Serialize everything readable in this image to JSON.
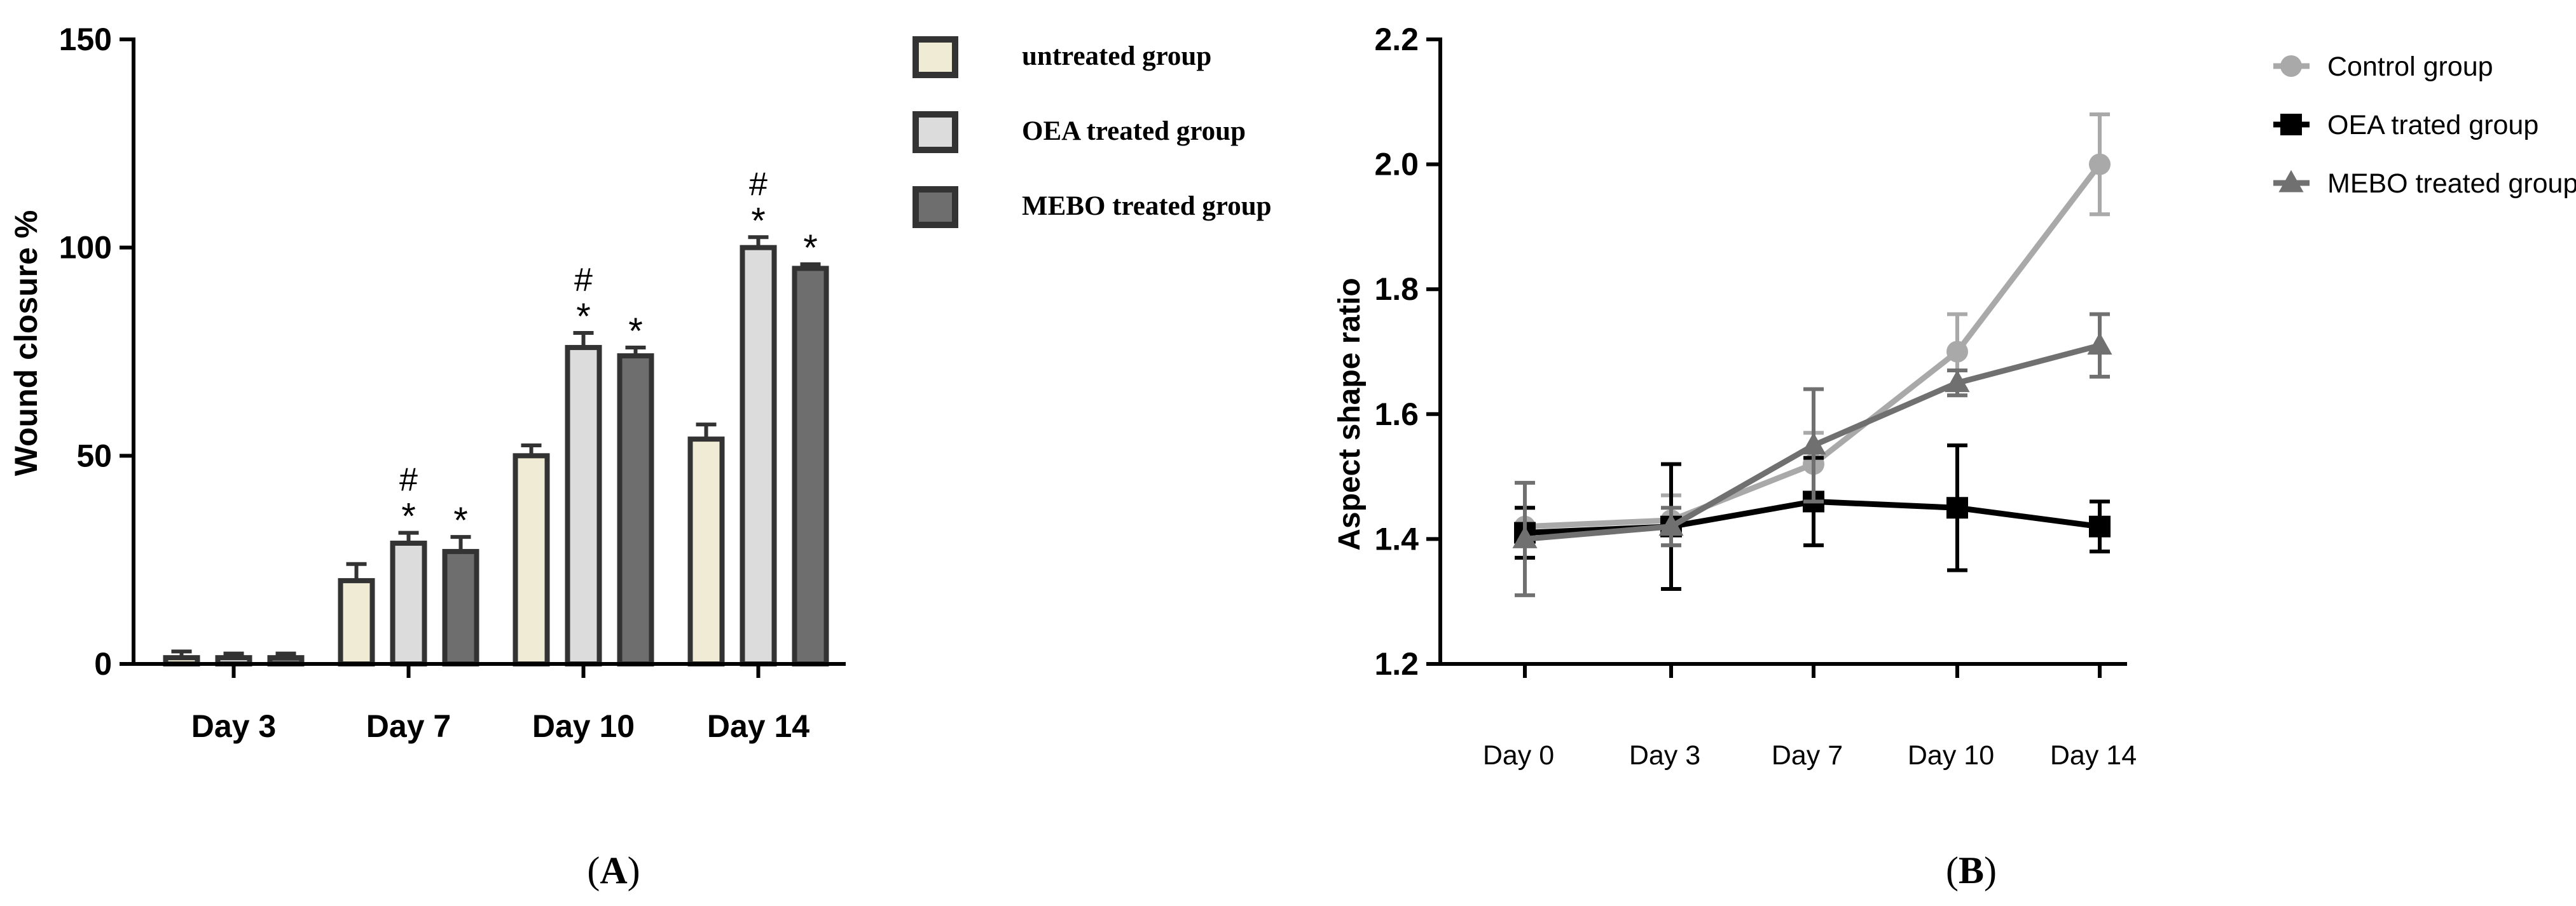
{
  "chart_data": [
    {
      "type": "bar",
      "panel_label": "(A)",
      "panel_letter": "A",
      "ylabel": "Wound closure %",
      "ylim": [
        0,
        150
      ],
      "yticks": [
        "0",
        "50",
        "100",
        "150"
      ],
      "categories": [
        "Day 3",
        "Day 7",
        "Day 10",
        "Day 14"
      ],
      "series": [
        {
          "name": "untreated group",
          "color": "#f0ebd4",
          "values": [
            1.5,
            20,
            50,
            54
          ],
          "errors": [
            1.5,
            4,
            2.5,
            3.5
          ],
          "marks": [
            "",
            "",
            "",
            ""
          ]
        },
        {
          "name": "OEA treated group",
          "color": "#dcdcdc",
          "values": [
            1.5,
            29,
            76,
            100
          ],
          "errors": [
            1,
            2.5,
            3.5,
            2.5
          ],
          "marks": [
            "",
            "#*",
            "#*",
            "#*"
          ]
        },
        {
          "name": "MEBO treated group",
          "color": "#6e6e6e",
          "values": [
            1.5,
            27,
            74,
            95
          ],
          "errors": [
            1,
            3.5,
            2,
            1
          ],
          "marks": [
            "",
            "*",
            "*",
            "*"
          ]
        }
      ]
    },
    {
      "type": "line",
      "panel_label": "(B)",
      "panel_letter": "B",
      "ylabel": "Aspect shape ratio",
      "ylim": [
        1.2,
        2.2
      ],
      "yticks": [
        "1.2",
        "1.4",
        "1.6",
        "1.8",
        "2.0",
        "2.2"
      ],
      "x": [
        "Day 0",
        "Day 3",
        "Day 7",
        "Day 10",
        "Day 14"
      ],
      "series": [
        {
          "name": "Control group",
          "color": "#a9a9a9",
          "marker": "circle",
          "values": [
            1.42,
            1.43,
            1.52,
            1.7,
            2.0
          ],
          "errors": [
            0.03,
            0.04,
            0.05,
            0.06,
            0.08
          ]
        },
        {
          "name": "OEA trated group",
          "color": "#000000",
          "marker": "square",
          "values": [
            1.41,
            1.42,
            1.46,
            1.45,
            1.42
          ],
          "errors": [
            0.04,
            0.1,
            0.07,
            0.1,
            0.04
          ]
        },
        {
          "name": "MEBO treated group",
          "color": "#707070",
          "marker": "triangle",
          "values": [
            1.4,
            1.42,
            1.55,
            1.65,
            1.71
          ],
          "errors": [
            0.09,
            0.03,
            0.09,
            0.02,
            0.05
          ]
        }
      ]
    }
  ]
}
